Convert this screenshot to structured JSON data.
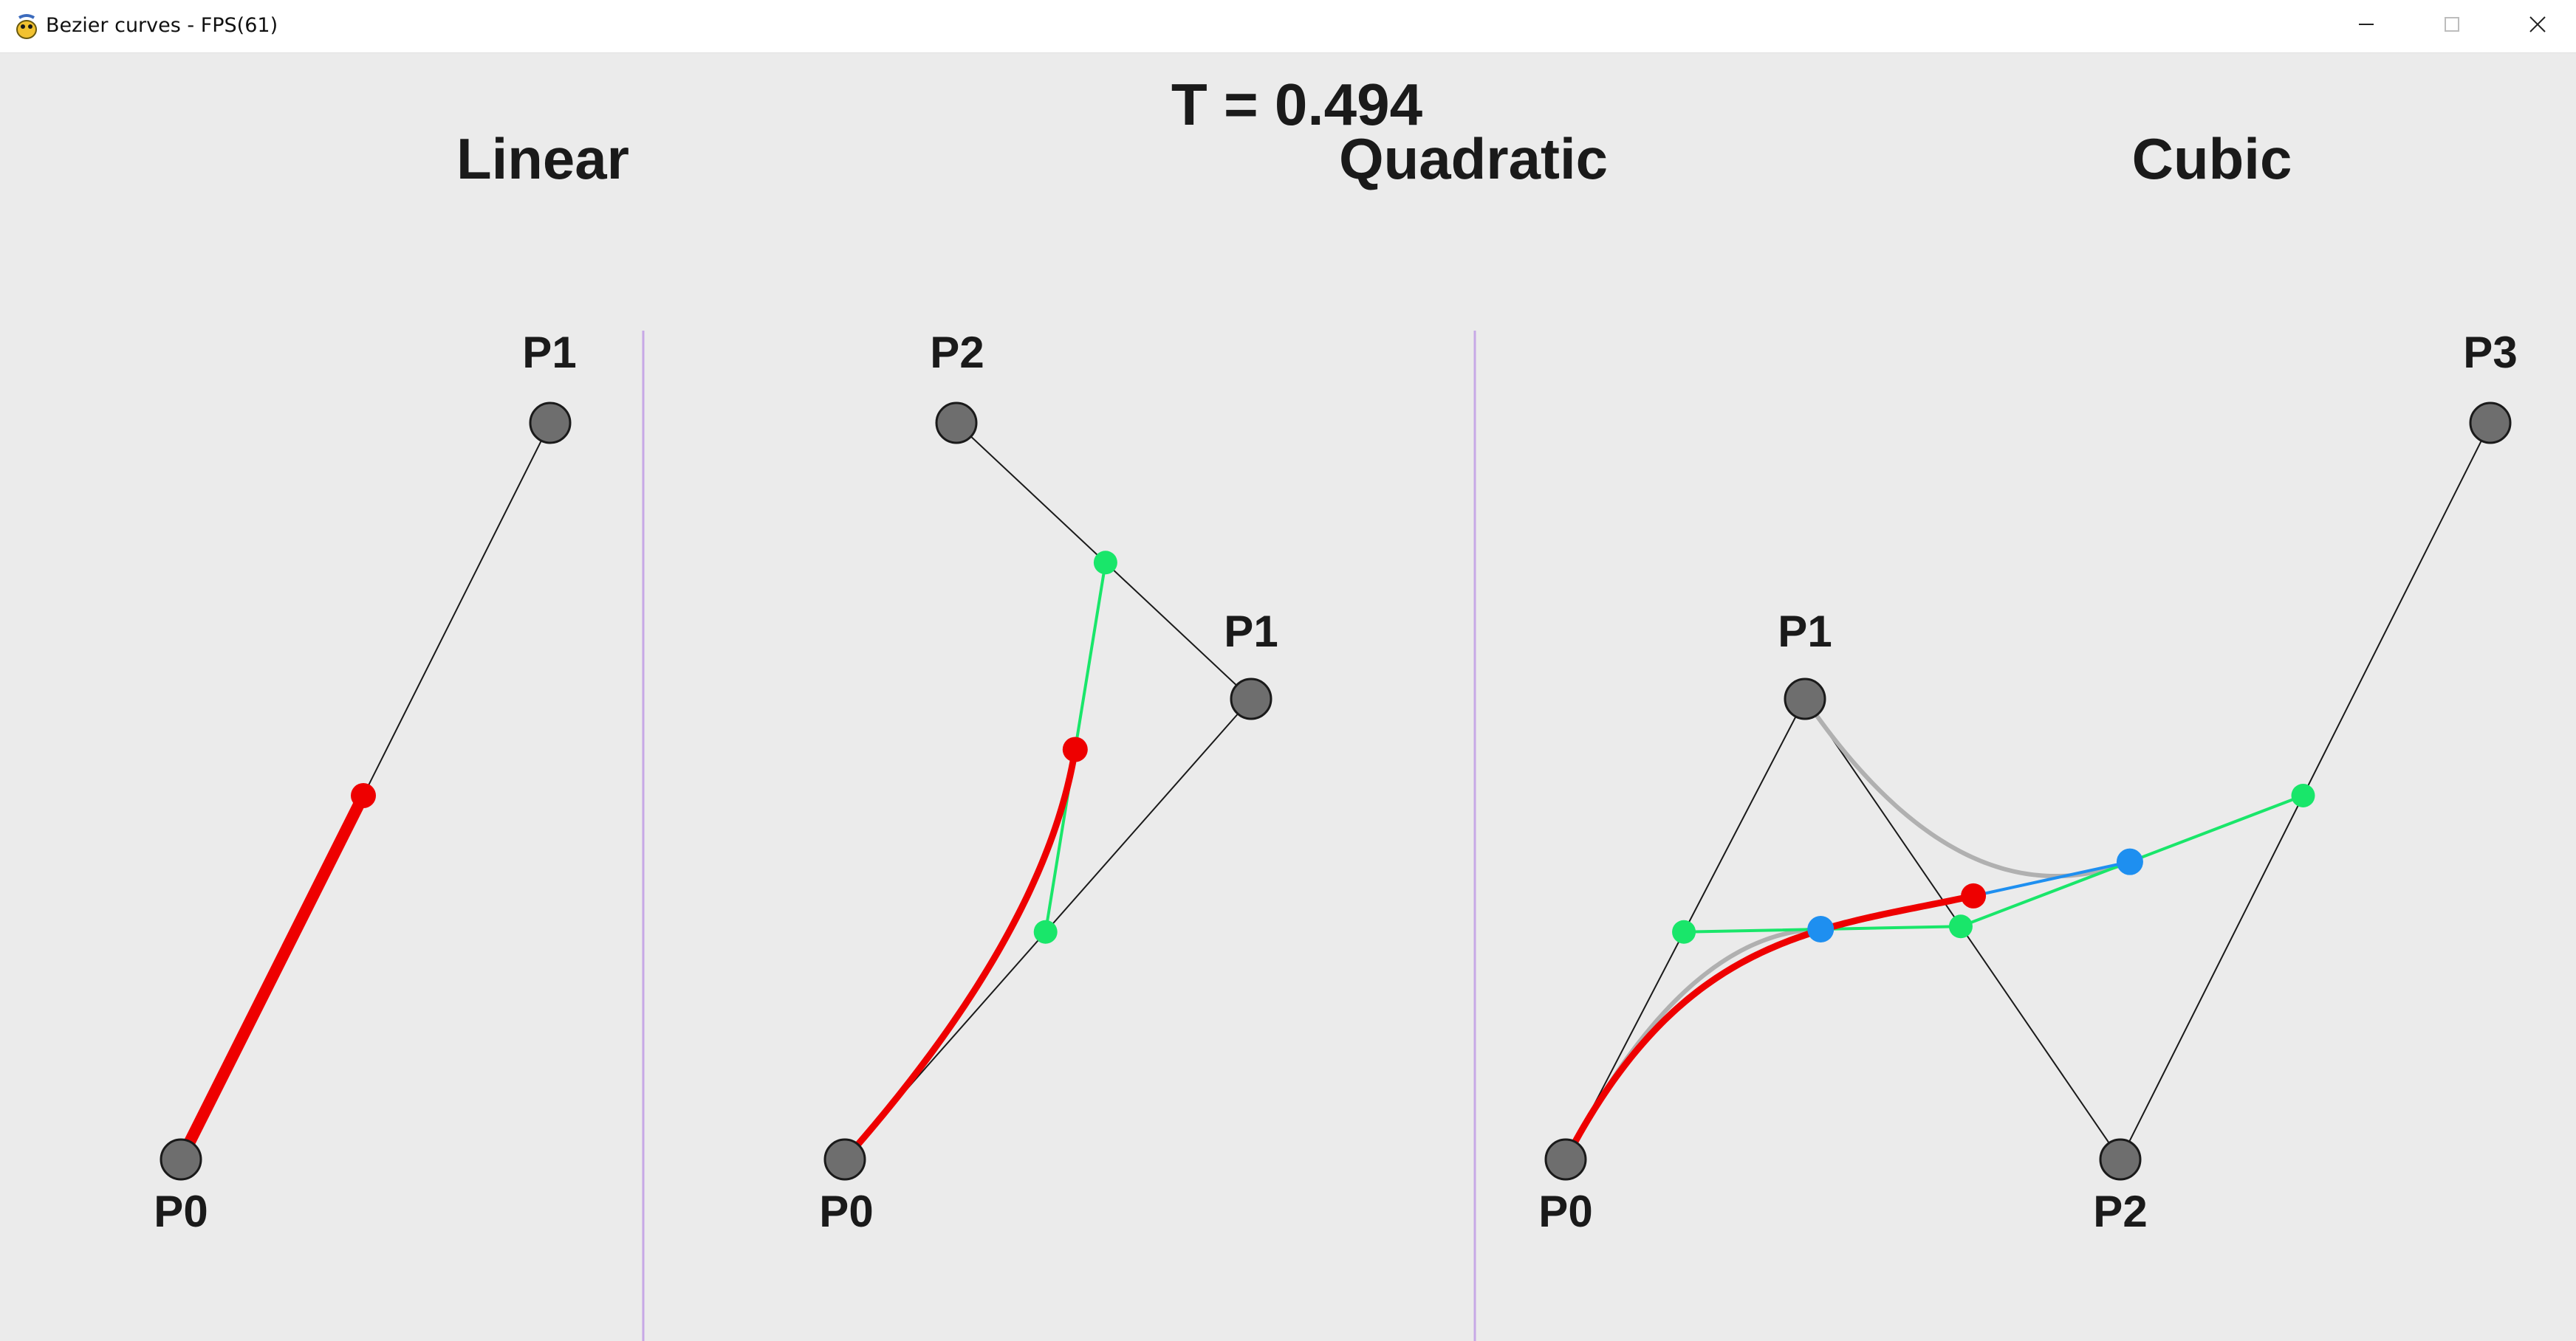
{
  "window": {
    "title": "Bezier curves - FPS(61)",
    "app_icon": "pygame-snake-icon",
    "controls": [
      "minimize-icon",
      "maximize-icon",
      "close-icon"
    ]
  },
  "header": {
    "t_label": "T = 0.494",
    "t_value": 0.494
  },
  "panels": {
    "linear": {
      "title": "Linear",
      "points": [
        {
          "label": "P0"
        },
        {
          "label": "P1"
        }
      ]
    },
    "quadratic": {
      "title": "Quadratic",
      "points": [
        {
          "label": "P0"
        },
        {
          "label": "P1"
        },
        {
          "label": "P2"
        }
      ]
    },
    "cubic": {
      "title": "Cubic",
      "points": [
        {
          "label": "P0"
        },
        {
          "label": "P1"
        },
        {
          "label": "P2"
        },
        {
          "label": "P3"
        }
      ]
    }
  },
  "colors": {
    "background": "#ebebeb",
    "control_point": "#6e6e6e",
    "control_line": "#1a1a1a",
    "curve": "#ee0000",
    "level1": "#19e66a",
    "level2": "#1e8ff0",
    "trace": "#b0b0b0",
    "divider": "#c7a8e6"
  }
}
